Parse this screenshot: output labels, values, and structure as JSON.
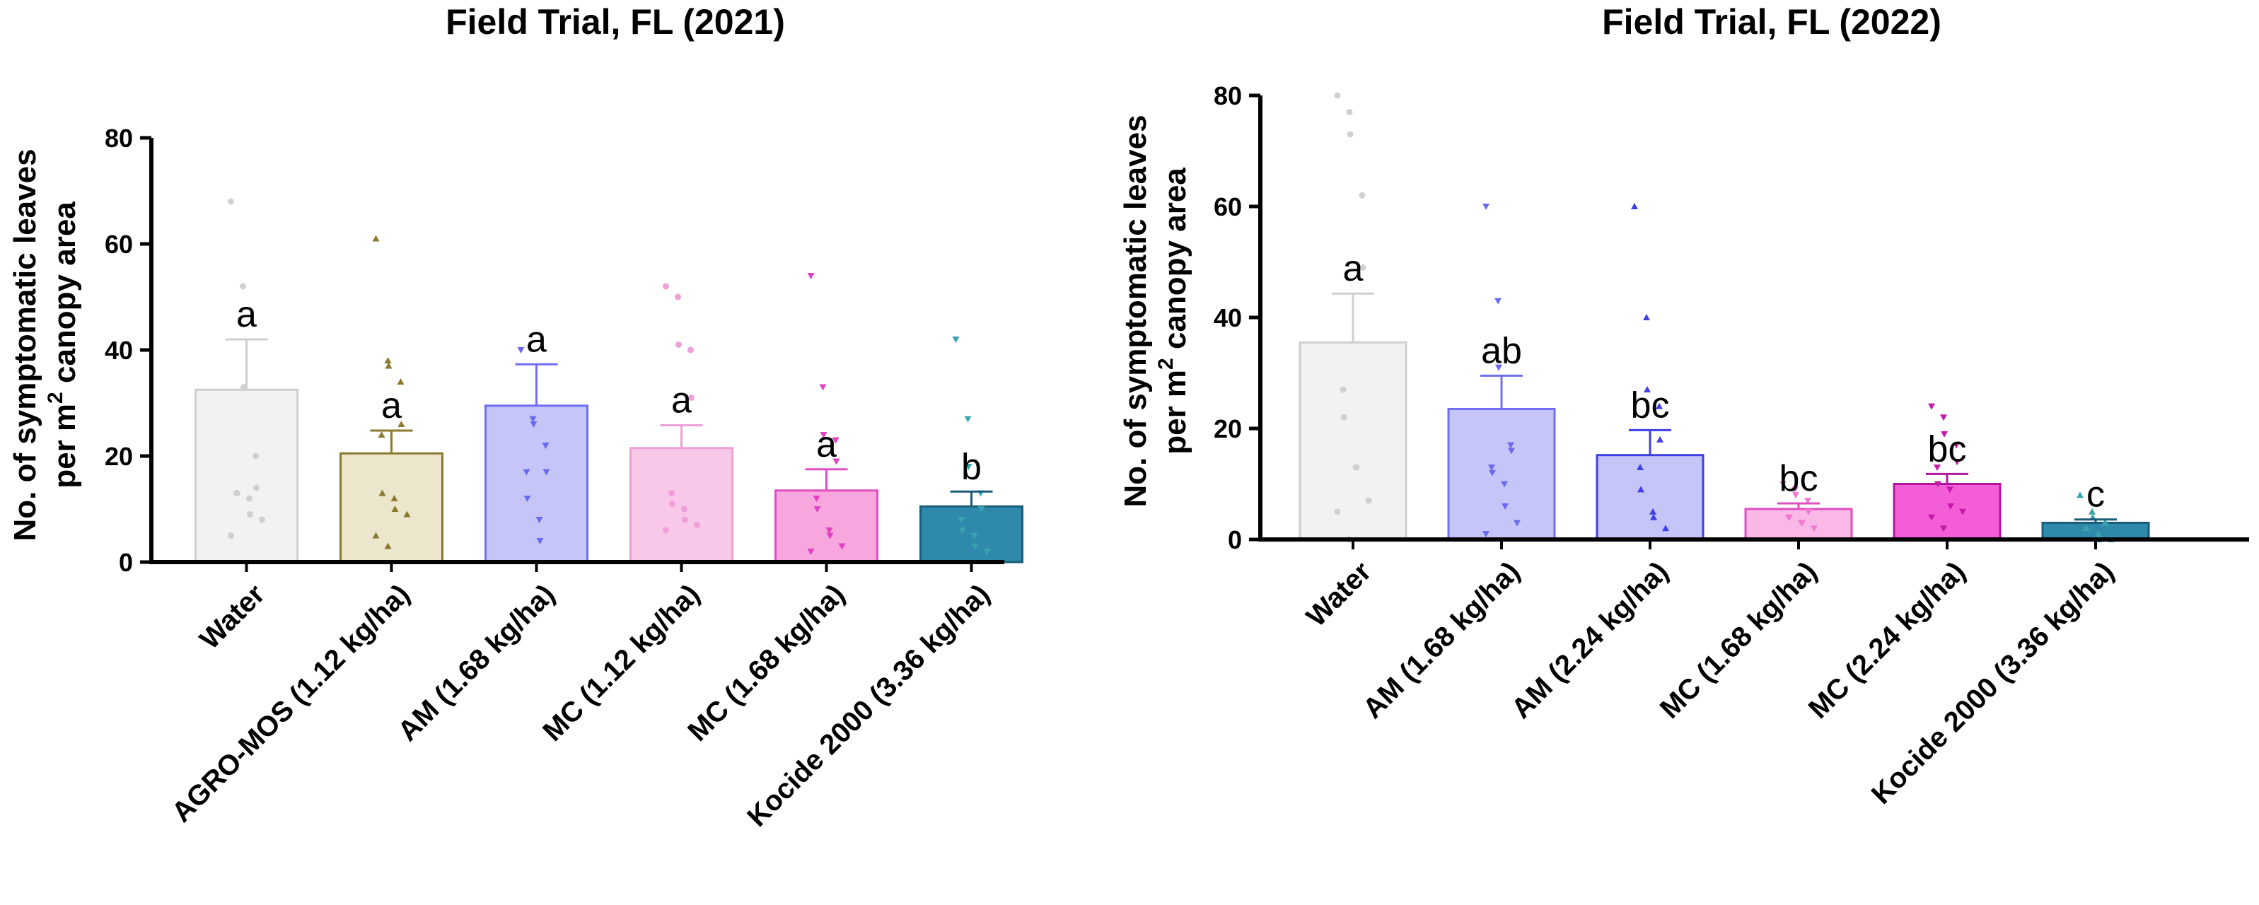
{
  "chart_data": [
    {
      "type": "bar",
      "title": "Field Trial, FL (2021)",
      "xlabel": "",
      "ylabel_line1": "No. of symptomatic leaves",
      "ylabel_line2_prefix": "per m",
      "ylabel_line2_sup": "2",
      "ylabel_line2_suffix": " canopy area",
      "ylim": [
        0,
        80
      ],
      "yticks": [
        0,
        20,
        40,
        60,
        80
      ],
      "categories": [
        "Water",
        "AGRO-MOS (1.12 kg/ha)",
        "AM (1.68 kg/ha)",
        "MC (1.12 kg/ha)",
        "MC (1.68 kg/ha)",
        "Kocide 2000 (3.36 kg/ha)"
      ],
      "values": [
        32.5,
        20.5,
        29.5,
        21.5,
        13.5,
        10.5
      ],
      "errors": [
        9.5,
        4.3,
        7.8,
        4.3,
        4.0,
        2.8
      ],
      "letters": [
        "a",
        "a",
        "a",
        "a",
        "a",
        "b"
      ],
      "fill_colors": [
        "#f2f2f2",
        "#ece6cd",
        "#c5c5f8",
        "#f9c8e9",
        "#f7a6de",
        "#2e89aa"
      ],
      "edge_colors": [
        "#cfcfcf",
        "#8a7a30",
        "#6f6ff0",
        "#ef9fd6",
        "#e04fc1",
        "#1b5d78"
      ],
      "point_colors": [
        "#d0d0d0",
        "#8a7a30",
        "#6a6af0",
        "#f0a0d8",
        "#e23fc2",
        "#3aa3b0"
      ],
      "point_shapes": [
        "circle",
        "triangle-up",
        "triangle-down",
        "circle",
        "triangle-down",
        "triangle-down"
      ],
      "points": [
        [
          68,
          52,
          33,
          20,
          14,
          13,
          13,
          12,
          9,
          8,
          5
        ],
        [
          61,
          38,
          37,
          34,
          26,
          24,
          13,
          12,
          10,
          9,
          5,
          3
        ],
        [
          40,
          27,
          26,
          22,
          17,
          17,
          12,
          8,
          4
        ],
        [
          52,
          50,
          41,
          40,
          31,
          13,
          11,
          10,
          8,
          7,
          6
        ],
        [
          54,
          33,
          24,
          23,
          19,
          12,
          10,
          6,
          5,
          3,
          2
        ],
        [
          42,
          27,
          18,
          13,
          10,
          8,
          6,
          5,
          3,
          2
        ]
      ]
    },
    {
      "type": "bar",
      "title": "Field Trial, FL (2022)",
      "xlabel": "",
      "ylabel_line1": "No. of symptomatic leaves",
      "ylabel_line2_prefix": "per m",
      "ylabel_line2_sup": "2",
      "ylabel_line2_suffix": " canopy area",
      "ylim": [
        0,
        80
      ],
      "yticks": [
        0,
        20,
        40,
        60,
        80
      ],
      "categories": [
        "Water",
        "AM (1.68 kg/ha)",
        "AM (2.24 kg/ha)",
        "MC (1.68 kg/ha)",
        "MC (2.24 kg/ha)",
        "Kocide 2000 (3.36 kg/ha)"
      ],
      "values": [
        35.5,
        23.5,
        15.2,
        5.5,
        10.0,
        3.0
      ],
      "errors": [
        8.8,
        6.0,
        4.5,
        1.0,
        1.8,
        0.6
      ],
      "letters": [
        "a",
        "ab",
        "bc",
        "bc",
        "bc",
        "c"
      ],
      "fill_colors": [
        "#f2f2f2",
        "#c5c5f8",
        "#c5c5f8",
        "#f9b8e6",
        "#f45dd8",
        "#2e89aa"
      ],
      "edge_colors": [
        "#cfcfcf",
        "#6f6ff0",
        "#3f3fe6",
        "#e04fc1",
        "#b0179e",
        "#1b5d78"
      ],
      "point_colors": [
        "#d0d0d0",
        "#6a6af0",
        "#3f3fe6",
        "#f07ad0",
        "#c41aa8",
        "#3aa3b0"
      ],
      "point_shapes": [
        "circle",
        "triangle-down",
        "triangle-up",
        "triangle-down",
        "triangle-down",
        "triangle-up"
      ],
      "points": [
        [
          80,
          77,
          73,
          62,
          49,
          27,
          22,
          13,
          13,
          7,
          5,
          0
        ],
        [
          60,
          43,
          31,
          17,
          16,
          13,
          12,
          10,
          6,
          3,
          1
        ],
        [
          60,
          40,
          27,
          24,
          18,
          13,
          9,
          5,
          4,
          2
        ],
        [
          10,
          9,
          8,
          7,
          5,
          4,
          4,
          3,
          3,
          2
        ],
        [
          24,
          22,
          19,
          17,
          14,
          13,
          10,
          9,
          6,
          5,
          4,
          2
        ],
        [
          8,
          5,
          4,
          3,
          3,
          2,
          2,
          1,
          0,
          0
        ]
      ]
    }
  ]
}
